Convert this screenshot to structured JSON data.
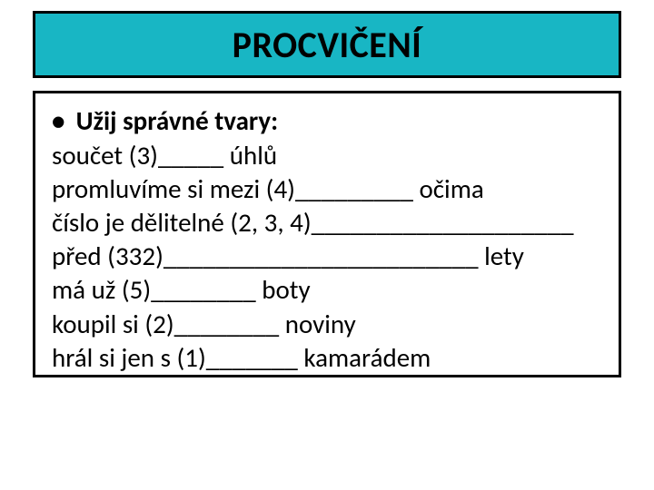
{
  "title": {
    "text": "PROCVIČENÍ",
    "background_color": "#18b6c4",
    "border_color": "#000000",
    "font_size": 40,
    "font_weight": 700
  },
  "content": {
    "background_color": "#ffffff",
    "border_color": "#000000",
    "font_size": 29,
    "instruction": "Užij správné tvary:",
    "bullet": "•",
    "lines": [
      "součet (3)_____ úhlů",
      "promluvíme si mezi (4)_________ očima",
      "číslo je dělitelné (2, 3, 4)____________________",
      "před (332)________________________ lety",
      "má už (5)________ boty",
      "koupil si (2)________ noviny",
      "hrál si jen s (1)_______ kamarádem"
    ]
  }
}
